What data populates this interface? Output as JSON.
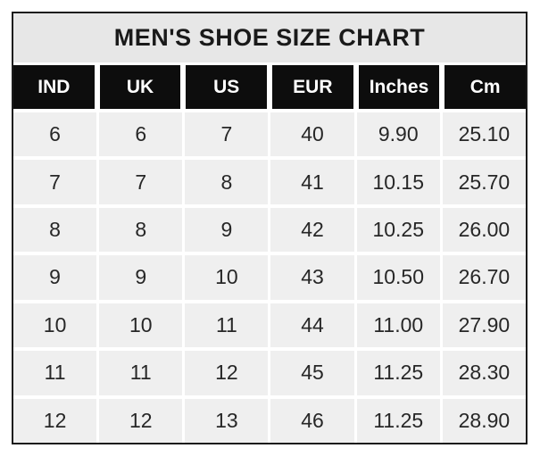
{
  "page": {
    "title": "MEN'S SHOE SIZE CHART"
  },
  "colors": {
    "page_background": "#ffffff",
    "outer_border": "#1b1b1b",
    "title_band_background": "#e7e7e7",
    "header_background": "#0d0d0d",
    "header_text": "#ffffff",
    "cell_background": "#efefef",
    "cell_text": "#272727",
    "grid_gap": "#ffffff"
  },
  "chart_data": {
    "type": "table",
    "title": "MEN'S SHOE SIZE CHART",
    "columns": [
      "IND",
      "UK",
      "US",
      "EUR",
      "Inches",
      "Cm"
    ],
    "rows": [
      [
        "6",
        "6",
        "7",
        "40",
        "9.90",
        "25.10"
      ],
      [
        "7",
        "7",
        "8",
        "41",
        "10.15",
        "25.70"
      ],
      [
        "8",
        "8",
        "9",
        "42",
        "10.25",
        "26.00"
      ],
      [
        "9",
        "9",
        "10",
        "43",
        "10.50",
        "26.70"
      ],
      [
        "10",
        "10",
        "11",
        "44",
        "11.00",
        "27.90"
      ],
      [
        "11",
        "11",
        "12",
        "45",
        "11.25",
        "28.30"
      ],
      [
        "12",
        "12",
        "13",
        "46",
        "11.25",
        "28.90"
      ]
    ]
  }
}
